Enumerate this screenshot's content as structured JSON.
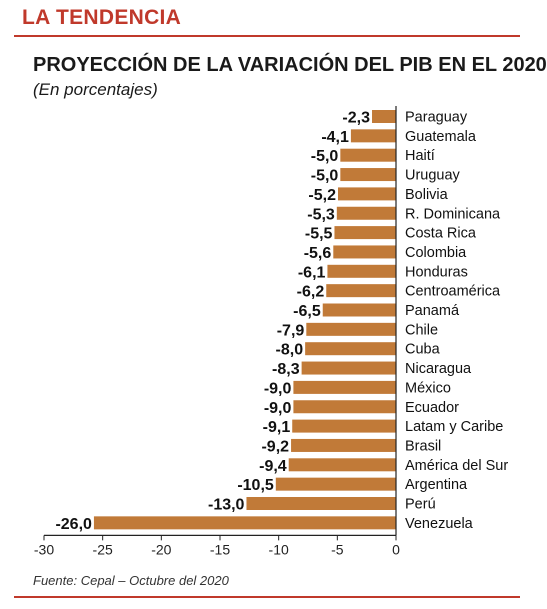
{
  "header": {
    "kicker": "LA TENDENCIA",
    "title": "PROYECCIÓN DE LA VARIACIÓN DEL PIB EN EL 2020",
    "subtitle": "(En porcentajes)"
  },
  "footer": {
    "source": "Fuente: Cepal – Octubre del 2020"
  },
  "colors": {
    "accent": "#c0392b",
    "bar": "#c17a38",
    "label_bg": "#ffffff"
  },
  "chart_data": {
    "type": "bar",
    "orientation": "horizontal",
    "title": "PROYECCIÓN DE LA VARIACIÓN DEL PIB EN EL 2020",
    "subtitle": "(En porcentajes)",
    "categories": [
      "Paraguay",
      "Guatemala",
      "Haití",
      "Uruguay",
      "Bolivia",
      "R. Dominicana",
      "Costa Rica",
      "Colombia",
      "Honduras",
      "Centroamérica",
      "Panamá",
      "Chile",
      "Cuba",
      "Nicaragua",
      "México",
      "Ecuador",
      "Latam y Caribe",
      "Brasil",
      "América del Sur",
      "Argentina",
      "Perú",
      "Venezuela"
    ],
    "values": [
      -2.3,
      -4.1,
      -5.0,
      -5.0,
      -5.2,
      -5.3,
      -5.5,
      -5.6,
      -6.1,
      -6.2,
      -6.5,
      -7.9,
      -8.0,
      -8.3,
      -9.0,
      -9.0,
      -9.1,
      -9.2,
      -9.4,
      -10.5,
      -13.0,
      -26.0
    ],
    "value_labels": [
      "-2,3",
      "-4,1",
      "-5,0",
      "-5,0",
      "-5,2",
      "-5,3",
      "-5,5",
      "-5,6",
      "-6,1",
      "-6,2",
      "-6,5",
      "-7,9",
      "-8,0",
      "-8,3",
      "-9,0",
      "-9,0",
      "-9,1",
      "-9,2",
      "-9,4",
      "-10,5",
      "-13,0",
      "-26,0"
    ],
    "xlim": [
      -30,
      0
    ],
    "xticks": [
      -30,
      -25,
      -20,
      -15,
      -10,
      -5,
      0
    ],
    "xtick_labels": [
      "-30",
      "-25",
      "-20",
      "-15",
      "-10",
      "-5",
      "0"
    ],
    "grid": false,
    "legend": "none"
  }
}
